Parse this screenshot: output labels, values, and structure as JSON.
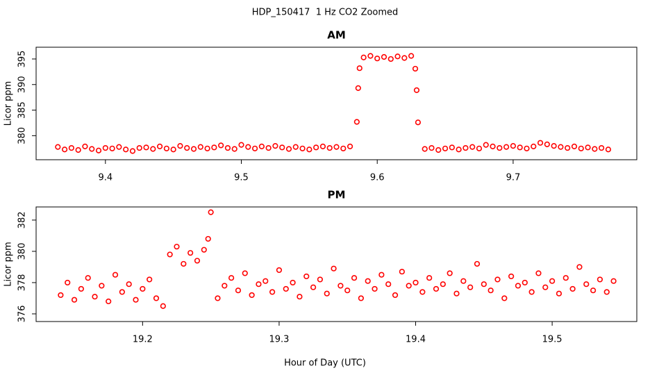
{
  "title": "HDP_150417  1 Hz CO2 Zoomed",
  "x_label": "Hour of Day (UTC)",
  "chart_data": [
    {
      "type": "scatter",
      "title": "AM",
      "y_label": "Licor ppm",
      "color": "#ff0000",
      "xlim": [
        9.349,
        9.791
      ],
      "ylim": [
        375.3,
        397.3
      ],
      "xticks": [
        9.4,
        9.5,
        9.6,
        9.7
      ],
      "yticks": [
        380,
        385,
        390,
        395
      ],
      "x": [
        9.365,
        9.37,
        9.375,
        9.38,
        9.385,
        9.39,
        9.395,
        9.4,
        9.405,
        9.41,
        9.415,
        9.42,
        9.425,
        9.43,
        9.435,
        9.44,
        9.445,
        9.45,
        9.455,
        9.46,
        9.465,
        9.47,
        9.475,
        9.48,
        9.485,
        9.49,
        9.495,
        9.5,
        9.505,
        9.51,
        9.515,
        9.52,
        9.525,
        9.53,
        9.535,
        9.54,
        9.545,
        9.55,
        9.555,
        9.56,
        9.565,
        9.57,
        9.575,
        9.58,
        9.585,
        9.586,
        9.587,
        9.59,
        9.595,
        9.6,
        9.605,
        9.61,
        9.615,
        9.62,
        9.625,
        9.628,
        9.629,
        9.63,
        9.635,
        9.64,
        9.645,
        9.65,
        9.655,
        9.66,
        9.665,
        9.67,
        9.675,
        9.68,
        9.685,
        9.69,
        9.695,
        9.7,
        9.705,
        9.71,
        9.715,
        9.72,
        9.725,
        9.73,
        9.735,
        9.74,
        9.745,
        9.75,
        9.755,
        9.76,
        9.765,
        9.77
      ],
      "values": [
        377.8,
        377.3,
        377.6,
        377.2,
        377.9,
        377.4,
        377.1,
        377.6,
        377.5,
        377.8,
        377.3,
        377.0,
        377.6,
        377.7,
        377.4,
        377.9,
        377.5,
        377.3,
        378.0,
        377.6,
        377.4,
        377.8,
        377.5,
        377.7,
        378.1,
        377.6,
        377.4,
        378.2,
        377.8,
        377.5,
        377.9,
        377.6,
        378.0,
        377.7,
        377.4,
        377.8,
        377.5,
        377.3,
        377.7,
        377.9,
        377.6,
        377.8,
        377.5,
        377.9,
        382.7,
        389.3,
        393.2,
        395.3,
        395.6,
        395.1,
        395.4,
        395.0,
        395.5,
        395.2,
        395.6,
        393.1,
        388.9,
        382.6,
        377.4,
        377.6,
        377.2,
        377.5,
        377.7,
        377.3,
        377.6,
        377.8,
        377.5,
        378.2,
        377.9,
        377.6,
        377.8,
        378.0,
        377.7,
        377.5,
        377.9,
        378.6,
        378.3,
        378.0,
        377.8,
        377.6,
        377.9,
        377.5,
        377.7,
        377.4,
        377.6,
        377.3
      ]
    },
    {
      "type": "scatter",
      "title": "PM",
      "y_label": "Licor ppm",
      "color": "#ff0000",
      "xlim": [
        19.122,
        19.562
      ],
      "ylim": [
        375.51,
        382.84
      ],
      "xticks": [
        19.2,
        19.3,
        19.4,
        19.5
      ],
      "yticks": [
        376,
        378,
        380,
        382
      ],
      "x": [
        19.14,
        19.145,
        19.15,
        19.155,
        19.16,
        19.165,
        19.17,
        19.175,
        19.18,
        19.185,
        19.19,
        19.195,
        19.2,
        19.205,
        19.21,
        19.215,
        19.22,
        19.225,
        19.23,
        19.235,
        19.24,
        19.245,
        19.248,
        19.25,
        19.255,
        19.26,
        19.265,
        19.27,
        19.275,
        19.28,
        19.285,
        19.29,
        19.295,
        19.3,
        19.305,
        19.31,
        19.315,
        19.32,
        19.325,
        19.33,
        19.335,
        19.34,
        19.345,
        19.35,
        19.355,
        19.36,
        19.365,
        19.37,
        19.375,
        19.38,
        19.385,
        19.39,
        19.395,
        19.4,
        19.405,
        19.41,
        19.415,
        19.42,
        19.425,
        19.43,
        19.435,
        19.44,
        19.445,
        19.45,
        19.455,
        19.46,
        19.465,
        19.47,
        19.475,
        19.48,
        19.485,
        19.49,
        19.495,
        19.5,
        19.505,
        19.51,
        19.515,
        19.52,
        19.525,
        19.53,
        19.535,
        19.54,
        19.545
      ],
      "values": [
        377.2,
        378.0,
        376.9,
        377.6,
        378.3,
        377.1,
        377.8,
        376.8,
        378.5,
        377.4,
        377.9,
        376.9,
        377.6,
        378.2,
        377.0,
        376.5,
        379.8,
        380.3,
        379.2,
        379.9,
        379.4,
        380.1,
        380.8,
        382.5,
        377.0,
        377.8,
        378.3,
        377.5,
        378.6,
        377.2,
        377.9,
        378.1,
        377.4,
        378.8,
        377.6,
        378.0,
        377.1,
        378.4,
        377.7,
        378.2,
        377.3,
        378.9,
        377.8,
        377.5,
        378.3,
        377.0,
        378.1,
        377.6,
        378.5,
        377.9,
        377.2,
        378.7,
        377.8,
        378.0,
        377.4,
        378.3,
        377.6,
        377.9,
        378.6,
        377.3,
        378.1,
        377.7,
        379.2,
        377.9,
        377.5,
        378.2,
        377.0,
        378.4,
        377.8,
        378.0,
        377.4,
        378.6,
        377.7,
        378.1,
        377.3,
        378.3,
        377.6,
        379.0,
        377.9,
        377.5,
        378.2,
        377.4,
        378.1
      ]
    }
  ]
}
